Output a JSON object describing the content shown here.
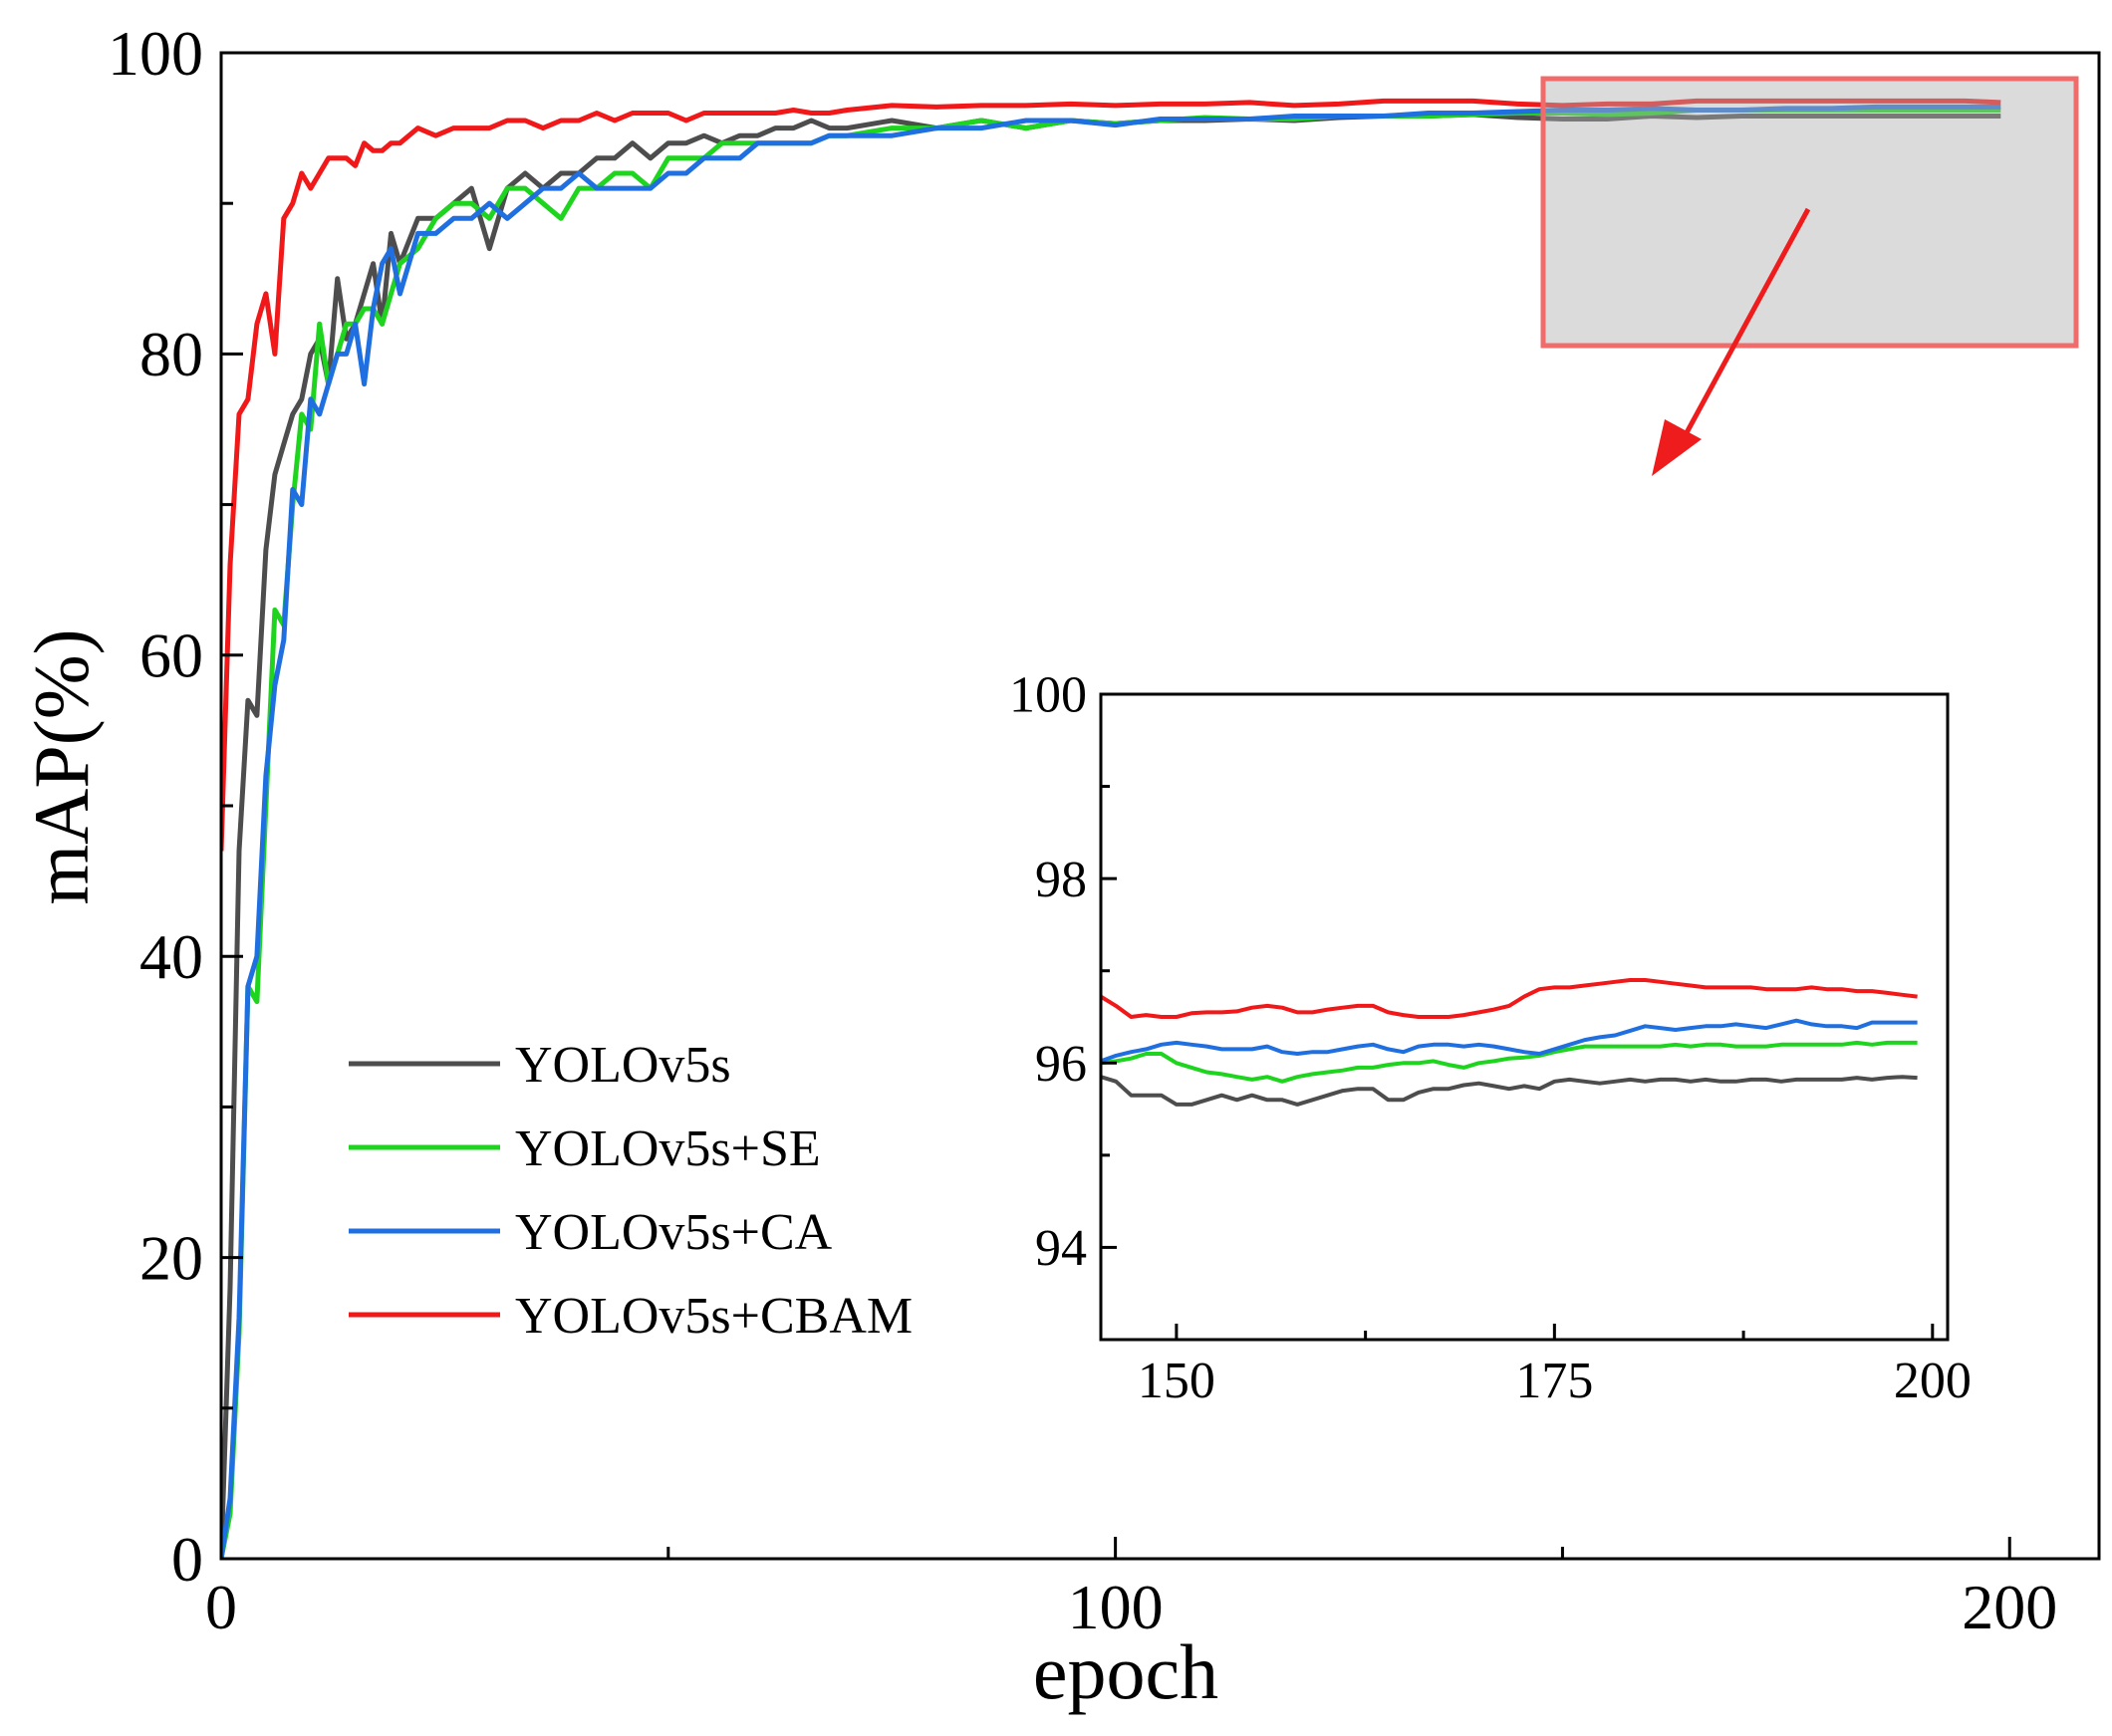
{
  "chart_data": [
    {
      "id": "main",
      "type": "line",
      "title": "",
      "xlabel": "epoch",
      "ylabel": "mAP(%)",
      "xlim": [
        0,
        210
      ],
      "ylim": [
        0,
        100
      ],
      "xticks": [
        0,
        100,
        200
      ],
      "xticks_minor": [
        50,
        150
      ],
      "yticks": [
        0,
        20,
        40,
        60,
        80,
        100
      ],
      "yticks_minor": [
        10,
        30,
        50,
        70,
        90
      ],
      "grid": false,
      "legend_position": "lower-left",
      "series": [
        {
          "name": "YOLOv5s",
          "color": "#4d4d4d",
          "x": [
            0,
            1,
            2,
            3,
            4,
            5,
            6,
            7,
            8,
            9,
            10,
            11,
            12,
            13,
            14,
            15,
            16,
            17,
            18,
            19,
            20,
            22,
            24,
            26,
            28,
            30,
            32,
            34,
            36,
            38,
            40,
            42,
            44,
            46,
            48,
            50,
            52,
            54,
            56,
            58,
            60,
            62,
            64,
            66,
            68,
            70,
            75,
            80,
            85,
            90,
            95,
            100,
            105,
            110,
            115,
            120,
            125,
            130,
            135,
            140,
            145,
            150,
            155,
            160,
            165,
            170,
            175,
            180,
            185,
            190,
            195,
            199
          ],
          "y": [
            0,
            18,
            47,
            57,
            56,
            67,
            72,
            74,
            76,
            77,
            80,
            81,
            78,
            85,
            81,
            82,
            84,
            86,
            82,
            88,
            86,
            89,
            89,
            90,
            91,
            87,
            91,
            92,
            91,
            92,
            92,
            93,
            93,
            94,
            93,
            94,
            94,
            94.5,
            94,
            94.5,
            94.5,
            95,
            95,
            95.5,
            95,
            95,
            95.5,
            95,
            95.5,
            95,
            95.5,
            95.3,
            95.5,
            95.5,
            95.6,
            95.5,
            95.7,
            95.8,
            95.8,
            95.9,
            95.7,
            95.6,
            95.6,
            95.8,
            95.7,
            95.8,
            95.8,
            95.8,
            95.8,
            95.8,
            95.8,
            95.8
          ]
        },
        {
          "name": "YOLOv5s+SE",
          "color": "#1ed41e",
          "x": [
            0,
            1,
            2,
            3,
            4,
            5,
            6,
            7,
            8,
            9,
            10,
            11,
            12,
            13,
            14,
            15,
            16,
            17,
            18,
            19,
            20,
            22,
            24,
            26,
            28,
            30,
            32,
            34,
            36,
            38,
            40,
            42,
            44,
            46,
            48,
            50,
            52,
            54,
            56,
            58,
            60,
            62,
            64,
            66,
            68,
            70,
            75,
            80,
            85,
            90,
            95,
            100,
            105,
            110,
            115,
            120,
            125,
            130,
            135,
            140,
            145,
            150,
            155,
            160,
            165,
            170,
            175,
            180,
            185,
            190,
            195,
            199
          ],
          "y": [
            0,
            3,
            15,
            38,
            37,
            50,
            63,
            62,
            70,
            76,
            75,
            82,
            78,
            80,
            82,
            82,
            83,
            83,
            82,
            84,
            86,
            87,
            89,
            90,
            90,
            89,
            91,
            91,
            90,
            89,
            91,
            91,
            92,
            92,
            91,
            93,
            93,
            93,
            94,
            94,
            94,
            94,
            94,
            94,
            94.5,
            94.5,
            95,
            95,
            95.5,
            95,
            95.5,
            95.3,
            95.5,
            95.7,
            95.6,
            95.6,
            95.8,
            95.8,
            95.8,
            95.9,
            96,
            96,
            95.9,
            96,
            96.2,
            96.2,
            96.2,
            96.2,
            96.2,
            96.2,
            96.2,
            96.2
          ]
        },
        {
          "name": "YOLOv5s+CA",
          "color": "#1f6fe0",
          "x": [
            0,
            1,
            2,
            3,
            4,
            5,
            6,
            7,
            8,
            9,
            10,
            11,
            12,
            13,
            14,
            15,
            16,
            17,
            18,
            19,
            20,
            22,
            24,
            26,
            28,
            30,
            32,
            34,
            36,
            38,
            40,
            42,
            44,
            46,
            48,
            50,
            52,
            54,
            56,
            58,
            60,
            62,
            64,
            66,
            68,
            70,
            75,
            80,
            85,
            90,
            95,
            100,
            105,
            110,
            115,
            120,
            125,
            130,
            135,
            140,
            145,
            150,
            155,
            160,
            165,
            170,
            175,
            180,
            185,
            190,
            195,
            199
          ],
          "y": [
            0,
            4,
            16,
            38,
            40,
            52,
            58,
            61,
            71,
            70,
            77,
            76,
            78,
            80,
            80,
            82,
            78,
            83,
            86,
            87,
            84,
            88,
            88,
            89,
            89,
            90,
            89,
            90,
            91,
            91,
            92,
            91,
            91,
            91,
            91,
            92,
            92,
            93,
            93,
            93,
            94,
            94,
            94,
            94,
            94.5,
            94.5,
            94.5,
            95,
            95,
            95.5,
            95.5,
            95.2,
            95.6,
            95.6,
            95.6,
            95.8,
            95.8,
            95.8,
            96,
            96,
            96.1,
            96.2,
            96.2,
            96.3,
            96.2,
            96.2,
            96.3,
            96.3,
            96.4,
            96.4,
            96.4,
            96.4
          ]
        },
        {
          "name": "YOLOv5s+CBAM",
          "color": "#f01818",
          "x": [
            0,
            1,
            2,
            3,
            4,
            5,
            6,
            7,
            8,
            9,
            10,
            11,
            12,
            13,
            14,
            15,
            16,
            17,
            18,
            19,
            20,
            22,
            24,
            26,
            28,
            30,
            32,
            34,
            36,
            38,
            40,
            42,
            44,
            46,
            48,
            50,
            52,
            54,
            56,
            58,
            60,
            62,
            64,
            66,
            68,
            70,
            75,
            80,
            85,
            90,
            95,
            100,
            105,
            110,
            115,
            120,
            125,
            130,
            135,
            140,
            145,
            150,
            155,
            160,
            165,
            170,
            175,
            180,
            185,
            190,
            195,
            199
          ],
          "y": [
            47,
            66,
            76,
            77,
            82,
            84,
            80,
            89,
            90,
            92,
            91,
            92,
            93,
            93,
            93,
            92.5,
            94,
            93.5,
            93.5,
            94,
            94,
            95,
            94.5,
            95,
            95,
            95,
            95.5,
            95.5,
            95,
            95.5,
            95.5,
            96,
            95.5,
            96,
            96,
            96,
            95.5,
            96,
            96,
            96,
            96,
            96,
            96.2,
            96,
            96,
            96.2,
            96.5,
            96.4,
            96.5,
            96.5,
            96.6,
            96.5,
            96.6,
            96.6,
            96.7,
            96.5,
            96.6,
            96.8,
            96.8,
            96.8,
            96.6,
            96.5,
            96.6,
            96.6,
            96.8,
            96.8,
            96.8,
            96.8,
            96.8,
            96.8,
            96.8,
            96.7
          ]
        }
      ]
    },
    {
      "id": "inset",
      "type": "line",
      "title": "",
      "xlabel": "",
      "ylabel": "",
      "xlim": [
        145,
        201
      ],
      "ylim": [
        93,
        100
      ],
      "xticks": [
        150,
        175,
        200
      ],
      "xticks_minor": [
        162.5,
        187.5
      ],
      "yticks": [
        94,
        96,
        98,
        100
      ],
      "yticks_minor": [
        95,
        97,
        99
      ],
      "grid": false,
      "series": [
        {
          "name": "YOLOv5s",
          "color": "#4d4d4d",
          "x": [
            145,
            146,
            147,
            148,
            149,
            150,
            151,
            152,
            153,
            154,
            155,
            156,
            157,
            158,
            159,
            160,
            161,
            162,
            163,
            164,
            165,
            166,
            167,
            168,
            169,
            170,
            171,
            172,
            173,
            174,
            175,
            176,
            177,
            178,
            179,
            180,
            181,
            182,
            183,
            184,
            185,
            186,
            187,
            188,
            189,
            190,
            191,
            192,
            193,
            194,
            195,
            196,
            197,
            198,
            199
          ],
          "y": [
            95.85,
            95.8,
            95.65,
            95.65,
            95.65,
            95.55,
            95.55,
            95.6,
            95.65,
            95.6,
            95.65,
            95.6,
            95.6,
            95.55,
            95.6,
            95.65,
            95.7,
            95.72,
            95.72,
            95.6,
            95.6,
            95.68,
            95.72,
            95.72,
            95.76,
            95.78,
            95.75,
            95.72,
            95.75,
            95.72,
            95.8,
            95.82,
            95.8,
            95.78,
            95.8,
            95.82,
            95.8,
            95.82,
            95.82,
            95.8,
            95.82,
            95.8,
            95.8,
            95.82,
            95.82,
            95.8,
            95.82,
            95.82,
            95.82,
            95.82,
            95.84,
            95.82,
            95.84,
            95.85,
            95.84
          ]
        },
        {
          "name": "YOLOv5s+SE",
          "color": "#1ed41e",
          "x": [
            145,
            146,
            147,
            148,
            149,
            150,
            151,
            152,
            153,
            154,
            155,
            156,
            157,
            158,
            159,
            160,
            161,
            162,
            163,
            164,
            165,
            166,
            167,
            168,
            169,
            170,
            171,
            172,
            173,
            174,
            175,
            176,
            177,
            178,
            179,
            180,
            181,
            182,
            183,
            184,
            185,
            186,
            187,
            188,
            189,
            190,
            191,
            192,
            193,
            194,
            195,
            196,
            197,
            198,
            199
          ],
          "y": [
            96.0,
            96.02,
            96.05,
            96.1,
            96.1,
            96.0,
            95.95,
            95.9,
            95.88,
            95.85,
            95.82,
            95.85,
            95.8,
            95.85,
            95.88,
            95.9,
            95.92,
            95.95,
            95.95,
            95.98,
            96.0,
            96.0,
            96.02,
            95.98,
            95.95,
            96.0,
            96.02,
            96.05,
            96.06,
            96.08,
            96.12,
            96.15,
            96.18,
            96.18,
            96.18,
            96.18,
            96.18,
            96.18,
            96.2,
            96.18,
            96.2,
            96.2,
            96.18,
            96.18,
            96.18,
            96.2,
            96.2,
            96.2,
            96.2,
            96.2,
            96.22,
            96.2,
            96.22,
            96.22,
            96.22
          ]
        },
        {
          "name": "YOLOv5s+CA",
          "color": "#1f6fe0",
          "x": [
            145,
            146,
            147,
            148,
            149,
            150,
            151,
            152,
            153,
            154,
            155,
            156,
            157,
            158,
            159,
            160,
            161,
            162,
            163,
            164,
            165,
            166,
            167,
            168,
            169,
            170,
            171,
            172,
            173,
            174,
            175,
            176,
            177,
            178,
            179,
            180,
            181,
            182,
            183,
            184,
            185,
            186,
            187,
            188,
            189,
            190,
            191,
            192,
            193,
            194,
            195,
            196,
            197,
            198,
            199
          ],
          "y": [
            96.02,
            96.08,
            96.12,
            96.15,
            96.2,
            96.22,
            96.2,
            96.18,
            96.15,
            96.15,
            96.15,
            96.18,
            96.12,
            96.1,
            96.12,
            96.12,
            96.15,
            96.18,
            96.2,
            96.15,
            96.12,
            96.18,
            96.2,
            96.2,
            96.18,
            96.2,
            96.18,
            96.15,
            96.12,
            96.1,
            96.15,
            96.2,
            96.25,
            96.28,
            96.3,
            96.35,
            96.4,
            96.38,
            96.36,
            96.38,
            96.4,
            96.4,
            96.42,
            96.4,
            96.38,
            96.42,
            96.46,
            96.42,
            96.4,
            96.4,
            96.38,
            96.44,
            96.44,
            96.44,
            96.44
          ]
        },
        {
          "name": "YOLOv5s+CBAM",
          "color": "#f01818",
          "x": [
            145,
            146,
            147,
            148,
            149,
            150,
            151,
            152,
            153,
            154,
            155,
            156,
            157,
            158,
            159,
            160,
            161,
            162,
            163,
            164,
            165,
            166,
            167,
            168,
            169,
            170,
            171,
            172,
            173,
            174,
            175,
            176,
            177,
            178,
            179,
            180,
            181,
            182,
            183,
            184,
            185,
            186,
            187,
            188,
            189,
            190,
            191,
            192,
            193,
            194,
            195,
            196,
            197,
            198,
            199
          ],
          "y": [
            96.72,
            96.62,
            96.5,
            96.52,
            96.5,
            96.5,
            96.54,
            96.55,
            96.55,
            96.56,
            96.6,
            96.62,
            96.6,
            96.55,
            96.55,
            96.58,
            96.6,
            96.62,
            96.62,
            96.55,
            96.52,
            96.5,
            96.5,
            96.5,
            96.52,
            96.55,
            96.58,
            96.62,
            96.72,
            96.8,
            96.82,
            96.82,
            96.84,
            96.86,
            96.88,
            96.9,
            96.9,
            96.88,
            96.86,
            96.84,
            96.82,
            96.82,
            96.82,
            96.82,
            96.8,
            96.8,
            96.8,
            96.82,
            96.8,
            96.8,
            96.78,
            96.78,
            96.76,
            96.74,
            96.72
          ]
        }
      ]
    }
  ]
}
